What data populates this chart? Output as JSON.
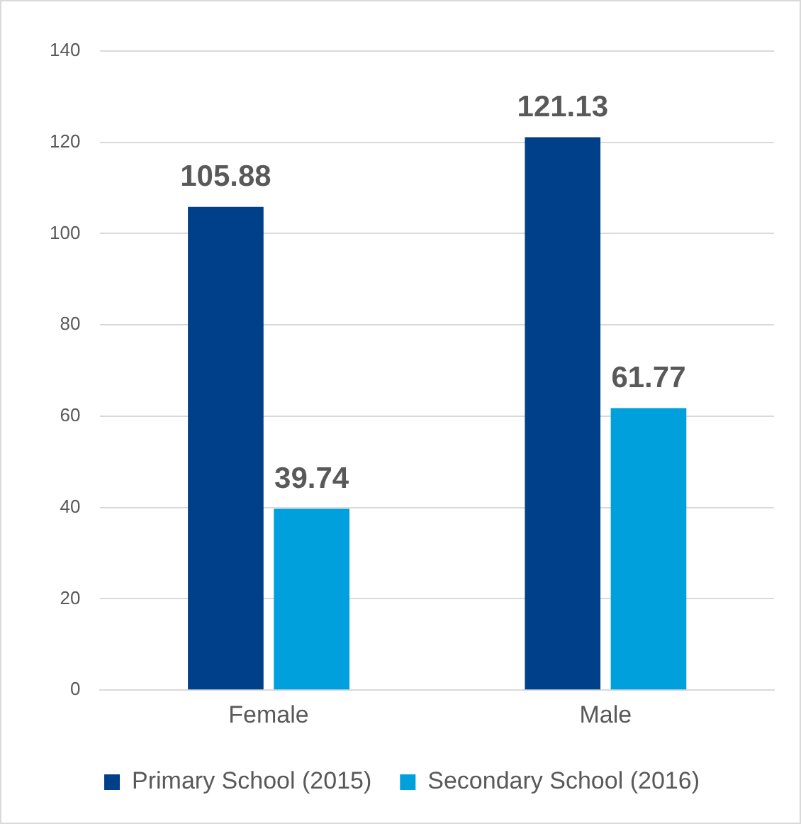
{
  "chart_data": {
    "type": "bar",
    "categories": [
      "Female",
      "Male"
    ],
    "series": [
      {
        "name": "Primary School (2015)",
        "color": "#003f8a",
        "values": [
          105.88,
          121.13
        ]
      },
      {
        "name": "Secondary School (2016)",
        "color": "#00a0dc",
        "values": [
          39.74,
          61.77
        ]
      }
    ],
    "ylim": [
      0,
      140
    ],
    "yticks": [
      0,
      20,
      40,
      60,
      80,
      100,
      120,
      140
    ],
    "grid": "y",
    "legend": "bottom",
    "data_labels": true
  }
}
